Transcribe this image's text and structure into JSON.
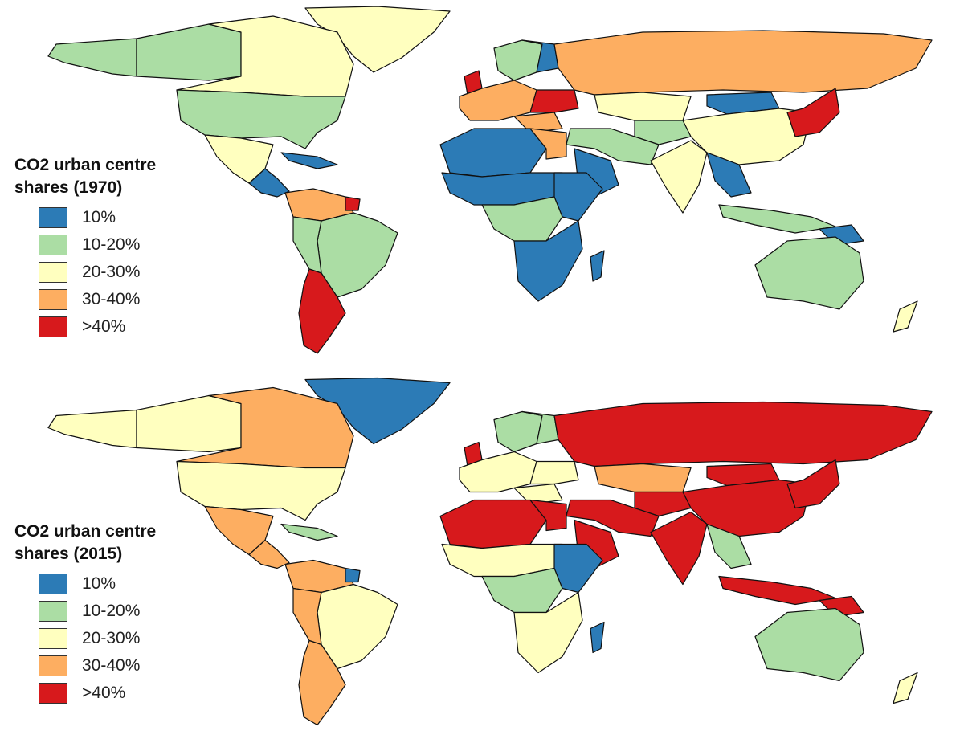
{
  "legend_classes": [
    {
      "label": "10%",
      "color": "#2c7bb6"
    },
    {
      "label": "10-20%",
      "color": "#abdda4"
    },
    {
      "label": "20-30%",
      "color": "#ffffbf"
    },
    {
      "label": "30-40%",
      "color": "#fdae61"
    },
    {
      "label": ">40%",
      "color": "#d7191c"
    }
  ],
  "maps": [
    {
      "title": "CO2 urban centre\nshares (1970)",
      "legend": [
        "10%",
        "10-20%",
        "20-30%",
        "30-40%",
        ">40%"
      ],
      "regions": {
        "canada_west": 1,
        "canada": 2,
        "alaska": 1,
        "usa": 1,
        "mexico": 2,
        "central_america": 0,
        "caribbean": 0,
        "greenland": 2,
        "south_america": 1,
        "colombia_venezuela": 3,
        "suriname": 4,
        "peru": 1,
        "argentina_chile": 4,
        "west_europe": 3,
        "uk": 4,
        "scandinavia": 1,
        "norway_finland": 0,
        "ukraine": 4,
        "balkans": 3,
        "north_africa": 0,
        "egypt": 3,
        "sahel": 0,
        "central_africa": 1,
        "east_africa": 0,
        "southern_africa": 0,
        "madagascar": 0,
        "arabia": 0,
        "middle_east": 1,
        "russia": 3,
        "kazakhstan": 2,
        "central_asia": 1,
        "mongolia": 0,
        "china": 2,
        "india": 2,
        "southeast_asia": 0,
        "indonesia": 1,
        "japan_korea": 4,
        "australia": 1,
        "new_zealand": 2,
        "papua": 0
      }
    },
    {
      "title": "CO2 urban centre\nshares (2015)",
      "legend": [
        "10%",
        "10-20%",
        "20-30%",
        "30-40%",
        ">40%"
      ],
      "regions": {
        "canada_west": 2,
        "canada": 3,
        "alaska": 2,
        "usa": 2,
        "mexico": 3,
        "central_america": 3,
        "caribbean": 1,
        "greenland": 0,
        "south_america": 2,
        "colombia_venezuela": 3,
        "suriname": 0,
        "peru": 3,
        "argentina_chile": 3,
        "west_europe": 2,
        "uk": 4,
        "scandinavia": 1,
        "norway_finland": 1,
        "ukraine": 2,
        "balkans": 2,
        "north_africa": 4,
        "egypt": 4,
        "sahel": 2,
        "central_africa": 1,
        "east_africa": 0,
        "southern_africa": 2,
        "madagascar": 0,
        "arabia": 4,
        "middle_east": 4,
        "russia": 4,
        "kazakhstan": 3,
        "central_asia": 4,
        "mongolia": 4,
        "china": 4,
        "india": 4,
        "southeast_asia": 1,
        "indonesia": 4,
        "japan_korea": 4,
        "australia": 1,
        "new_zealand": 2,
        "papua": 4
      }
    }
  ]
}
